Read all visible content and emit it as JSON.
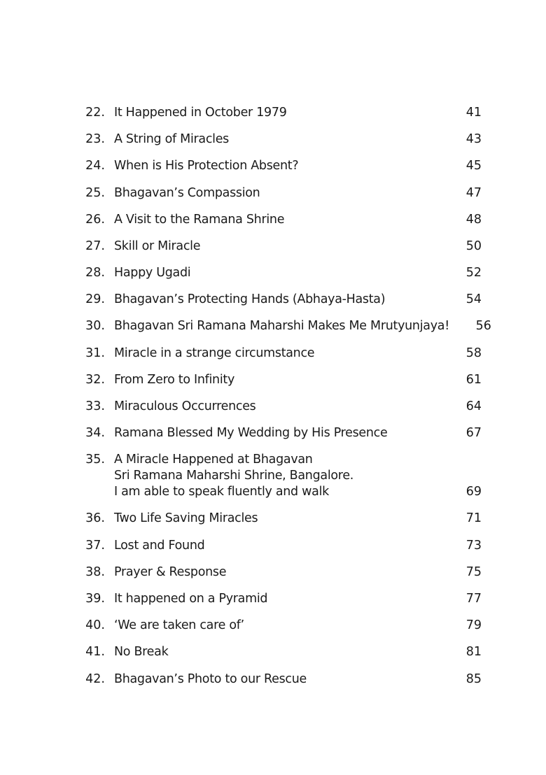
{
  "toc": [
    {
      "num": "22.",
      "title": "It Happened in October 1979",
      "page": "41"
    },
    {
      "num": "23.",
      "title": "A String of Miracles",
      "page": "43"
    },
    {
      "num": "24.",
      "title": "When is His Protection Absent?",
      "page": "45"
    },
    {
      "num": "25.",
      "title": "Bhagavan’s Compassion",
      "page": "47"
    },
    {
      "num": "26.",
      "title": "A Visit to the Ramana Shrine",
      "page": "48"
    },
    {
      "num": "27.",
      "title": "Skill or Miracle",
      "page": "50"
    },
    {
      "num": "28.",
      "title": "Happy Ugadi",
      "page": "52"
    },
    {
      "num": "29.",
      "title": "Bhagavan’s Protecting Hands (Abhaya-Hasta)",
      "page": "54"
    },
    {
      "num": "30.",
      "title": "Bhagavan Sri Ramana Maharshi Makes Me Mrutyunjaya!",
      "page": "56"
    },
    {
      "num": "31.",
      "title": "Miracle in a strange circumstance",
      "page": "58"
    },
    {
      "num": "32.",
      "title": "From Zero to Infinity",
      "page": "61"
    },
    {
      "num": "33.",
      "title": "Miraculous Occurrences",
      "page": "64"
    },
    {
      "num": "34.",
      "title": "Ramana Blessed My Wedding by His Presence",
      "page": "67"
    },
    {
      "num": "35.",
      "title_lines": [
        "A Miracle Happened at Bhagavan",
        "Sri Ramana Maharshi Shrine, Bangalore.",
        "I am able to speak fluently and walk"
      ],
      "page": "69"
    },
    {
      "num": "36.",
      "title": "Two Life Saving Miracles",
      "page": "71"
    },
    {
      "num": "37.",
      "title": "Lost and Found",
      "page": "73"
    },
    {
      "num": "38.",
      "title": "Prayer & Response",
      "page": "75"
    },
    {
      "num": "39.",
      "title": "It happened on a Pyramid",
      "page": "77"
    },
    {
      "num": "40.",
      "title": "‘We are taken care of’",
      "page": "79"
    },
    {
      "num": "41.",
      "title": "No Break",
      "page": "81"
    },
    {
      "num": "42.",
      "title": "Bhagavan’s Photo to our Rescue",
      "page": "85"
    }
  ]
}
